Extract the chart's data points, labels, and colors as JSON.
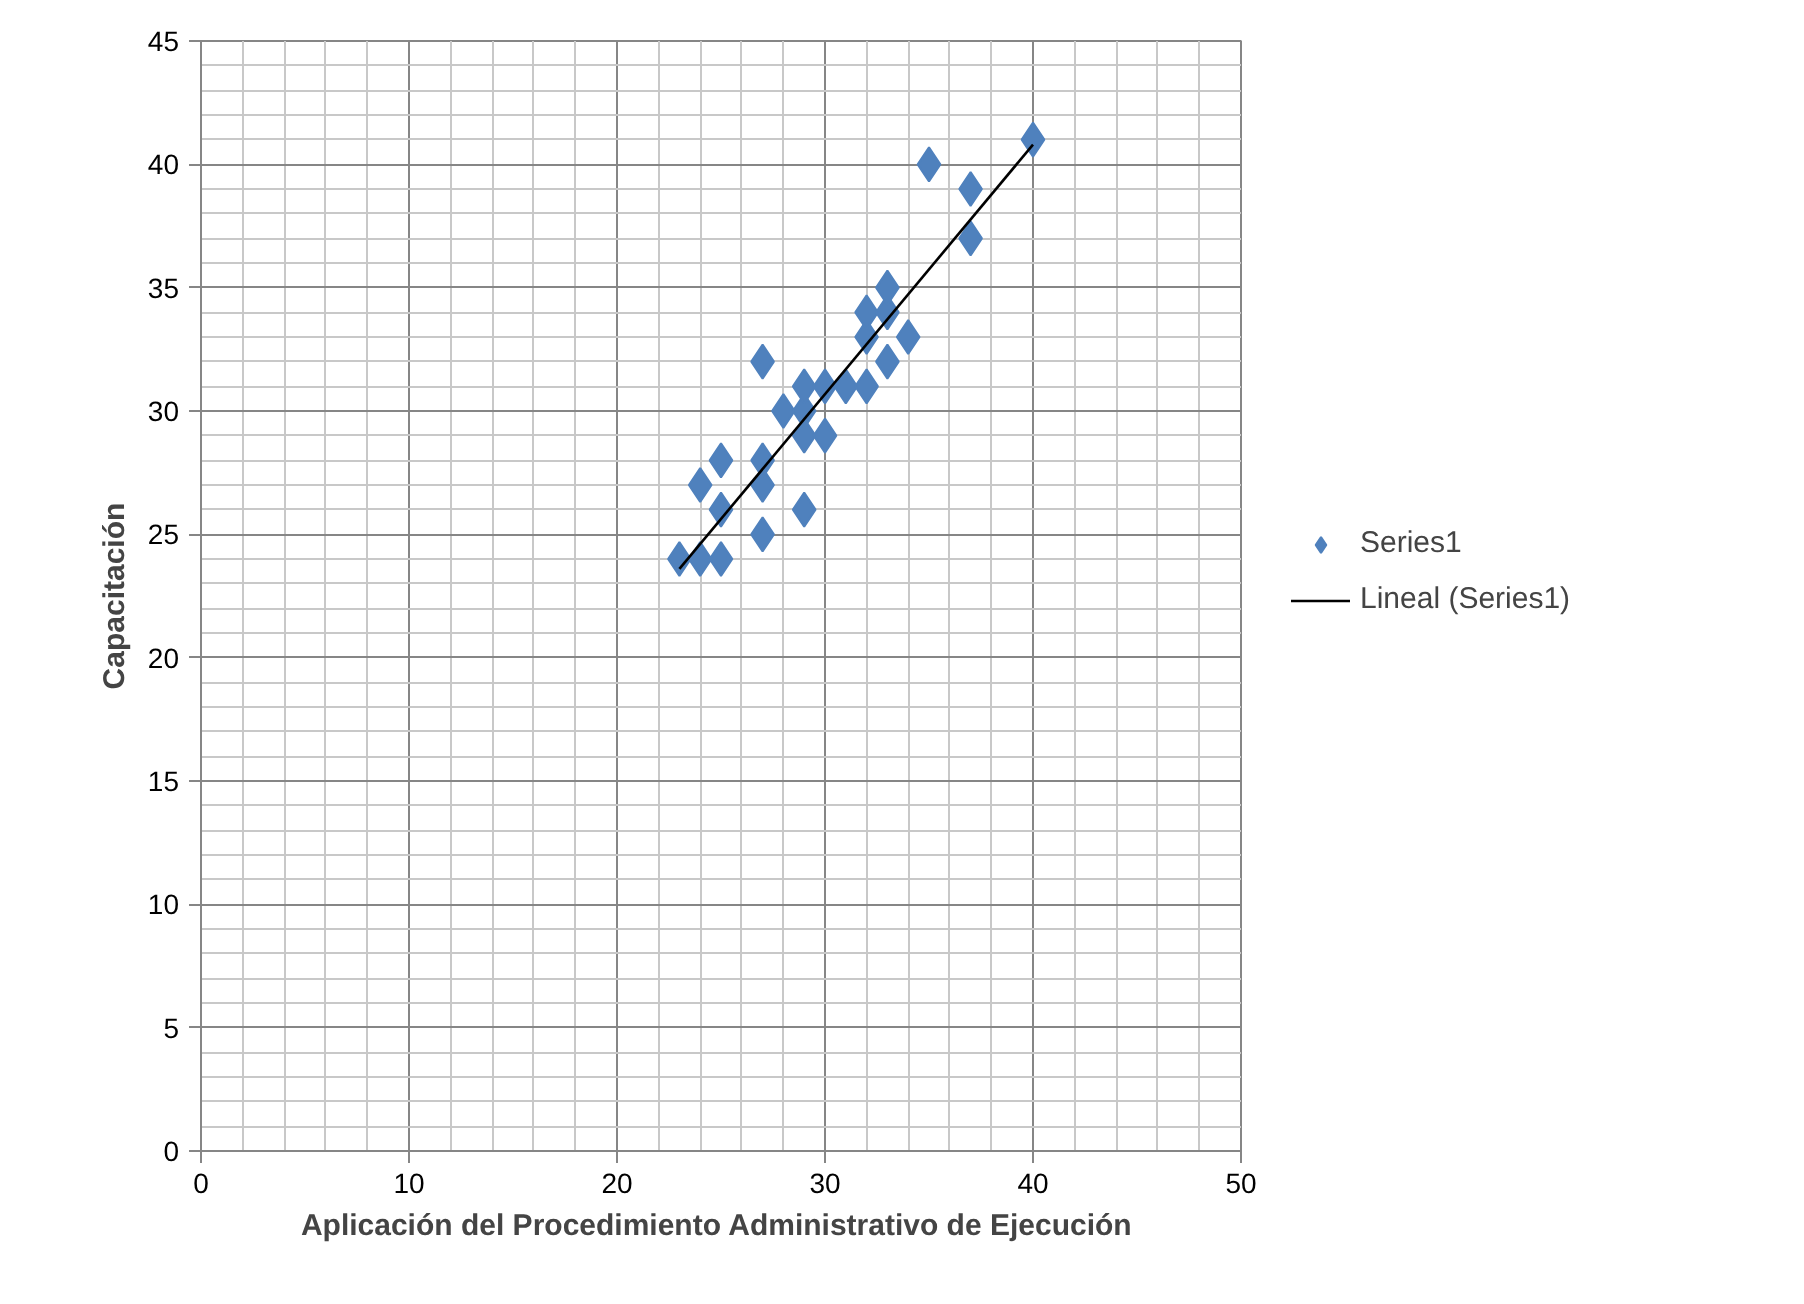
{
  "chart_data": {
    "type": "scatter",
    "xlabel": "Aplicación del Procedimiento Administrativo  de Ejecución",
    "ylabel": "Capacitación",
    "xlim": [
      0,
      50
    ],
    "ylim": [
      0,
      45
    ],
    "xticks": [
      0,
      10,
      20,
      30,
      40,
      50
    ],
    "yticks": [
      0,
      5,
      10,
      15,
      20,
      25,
      30,
      35,
      40,
      45
    ],
    "grid": true,
    "legend": "right",
    "series": [
      {
        "name": "Series1",
        "color": "#4f81bd",
        "marker": "diamond",
        "x": [
          23,
          24,
          25,
          27,
          29,
          25,
          24,
          27,
          25,
          27,
          29,
          30,
          28,
          29,
          29,
          30,
          31,
          32,
          27,
          33,
          32,
          34,
          32,
          33,
          33,
          37,
          37,
          35,
          40
        ],
        "values": [
          24,
          24,
          24,
          25,
          26,
          26,
          27,
          27,
          28,
          28,
          29,
          29,
          30,
          30,
          31,
          31,
          31,
          31,
          32,
          32,
          33,
          33,
          34,
          34,
          35,
          37,
          39,
          40,
          41
        ]
      },
      {
        "name": "Lineal (Series1)",
        "color": "#000000",
        "type": "line",
        "line_style": "solid",
        "x": [
          23,
          40
        ],
        "values": [
          23.6,
          40.8
        ]
      }
    ]
  }
}
